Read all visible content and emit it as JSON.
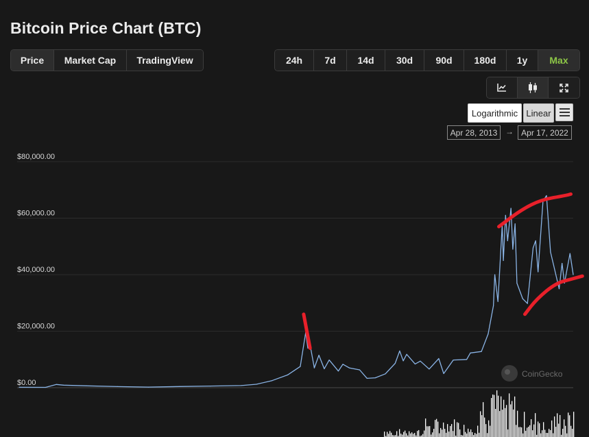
{
  "title": "Bitcoin Price Chart (BTC)",
  "view_tabs": [
    "Price",
    "Market Cap",
    "TradingView"
  ],
  "range_tabs": [
    "24h",
    "7d",
    "14d",
    "30d",
    "90d",
    "180d",
    "1y",
    "Max"
  ],
  "active_range": "Max",
  "tool_icons": [
    "line-chart-icon",
    "candlestick-icon",
    "fullscreen-icon"
  ],
  "scale": {
    "log_label": "Logarithmic",
    "linear_label": "Linear",
    "active": "Linear"
  },
  "date_range": {
    "from": "Apr 28, 2013",
    "arrow": "→",
    "to": "Apr 17, 2022"
  },
  "watermark": "CoinGecko",
  "colors": {
    "line": "#8ab4e6",
    "annotation": "#e8202a",
    "volume": "#ffffff",
    "active_range": "#8dc647"
  },
  "chart_data": {
    "type": "line",
    "series": [
      {
        "values": [
          [
            "2013-04-28",
            135
          ],
          [
            "2013-10-01",
            130
          ],
          [
            "2013-12-04",
            1150
          ],
          [
            "2014-01-15",
            900
          ],
          [
            "2014-06-01",
            650
          ],
          [
            "2014-12-01",
            380
          ],
          [
            "2015-06-01",
            230
          ],
          [
            "2015-12-01",
            420
          ],
          [
            "2016-06-01",
            580
          ],
          [
            "2016-12-01",
            760
          ],
          [
            "2017-03-01",
            1200
          ],
          [
            "2017-06-01",
            2500
          ],
          [
            "2017-09-01",
            4500
          ],
          [
            "2017-11-15",
            7500
          ],
          [
            "2017-12-17",
            19500
          ],
          [
            "2017-12-30",
            14000
          ],
          [
            "2018-01-08",
            16500
          ],
          [
            "2018-02-06",
            7000
          ],
          [
            "2018-03-05",
            11500
          ],
          [
            "2018-04-06",
            6700
          ],
          [
            "2018-05-05",
            9800
          ],
          [
            "2018-06-28",
            5900
          ],
          [
            "2018-07-25",
            8300
          ],
          [
            "2018-09-01",
            7000
          ],
          [
            "2018-11-01",
            6300
          ],
          [
            "2018-12-15",
            3300
          ],
          [
            "2019-02-01",
            3500
          ],
          [
            "2019-04-02",
            4900
          ],
          [
            "2019-05-30",
            8600
          ],
          [
            "2019-06-26",
            13000
          ],
          [
            "2019-07-17",
            9500
          ],
          [
            "2019-08-06",
            11800
          ],
          [
            "2019-09-25",
            8400
          ],
          [
            "2019-10-26",
            9400
          ],
          [
            "2019-12-17",
            6600
          ],
          [
            "2020-02-12",
            10300
          ],
          [
            "2020-03-12",
            5000
          ],
          [
            "2020-05-08",
            9800
          ],
          [
            "2020-07-26",
            10000
          ],
          [
            "2020-08-17",
            12300
          ],
          [
            "2020-10-21",
            12800
          ],
          [
            "2020-11-30",
            19000
          ],
          [
            "2020-12-31",
            29000
          ],
          [
            "2021-01-08",
            40000
          ],
          [
            "2021-01-27",
            30500
          ],
          [
            "2021-02-21",
            57500
          ],
          [
            "2021-02-28",
            45000
          ],
          [
            "2021-03-13",
            61000
          ],
          [
            "2021-03-25",
            52000
          ],
          [
            "2021-04-14",
            63500
          ],
          [
            "2021-04-25",
            49000
          ],
          [
            "2021-05-08",
            58000
          ],
          [
            "2021-05-19",
            37000
          ],
          [
            "2021-06-22",
            31500
          ],
          [
            "2021-07-20",
            29800
          ],
          [
            "2021-08-23",
            49500
          ],
          [
            "2021-09-07",
            52000
          ],
          [
            "2021-09-21",
            41000
          ],
          [
            "2021-10-20",
            66000
          ],
          [
            "2021-11-10",
            68000
          ],
          [
            "2021-12-04",
            48000
          ],
          [
            "2022-01-24",
            35000
          ],
          [
            "2022-02-10",
            44000
          ],
          [
            "2022-02-24",
            37000
          ],
          [
            "2022-03-29",
            47500
          ],
          [
            "2022-04-17",
            40000
          ]
        ]
      }
    ],
    "x_range": [
      "2013-04-28",
      "2022-04-17"
    ],
    "ylim": [
      0,
      80000
    ],
    "ytick_labels": [
      "$0.00",
      "$20,000.00",
      "$40,000.00",
      "$60,000.00",
      "$80,000.00"
    ],
    "yticks": [
      0,
      20000,
      40000,
      60000,
      80000
    ],
    "grid": "horizontal",
    "volume_bars": true,
    "annotations": [
      {
        "type": "freehand-line",
        "from": [
          "2017-12-05",
          26000
        ],
        "to": [
          "2018-01-12",
          14000
        ]
      },
      {
        "type": "freehand-curve",
        "points": [
          [
            "2021-02-01",
            57000
          ],
          [
            "2021-06-15",
            63000
          ],
          [
            "2021-10-10",
            66500
          ],
          [
            "2022-03-01",
            68000
          ],
          [
            "2022-04-03",
            68500
          ]
        ]
      },
      {
        "type": "freehand-curve",
        "points": [
          [
            "2021-07-05",
            26000
          ],
          [
            "2021-09-15",
            31500
          ],
          [
            "2022-01-05",
            37000
          ],
          [
            "2022-04-10",
            38500
          ],
          [
            "2022-06-10",
            39500
          ]
        ]
      }
    ]
  }
}
